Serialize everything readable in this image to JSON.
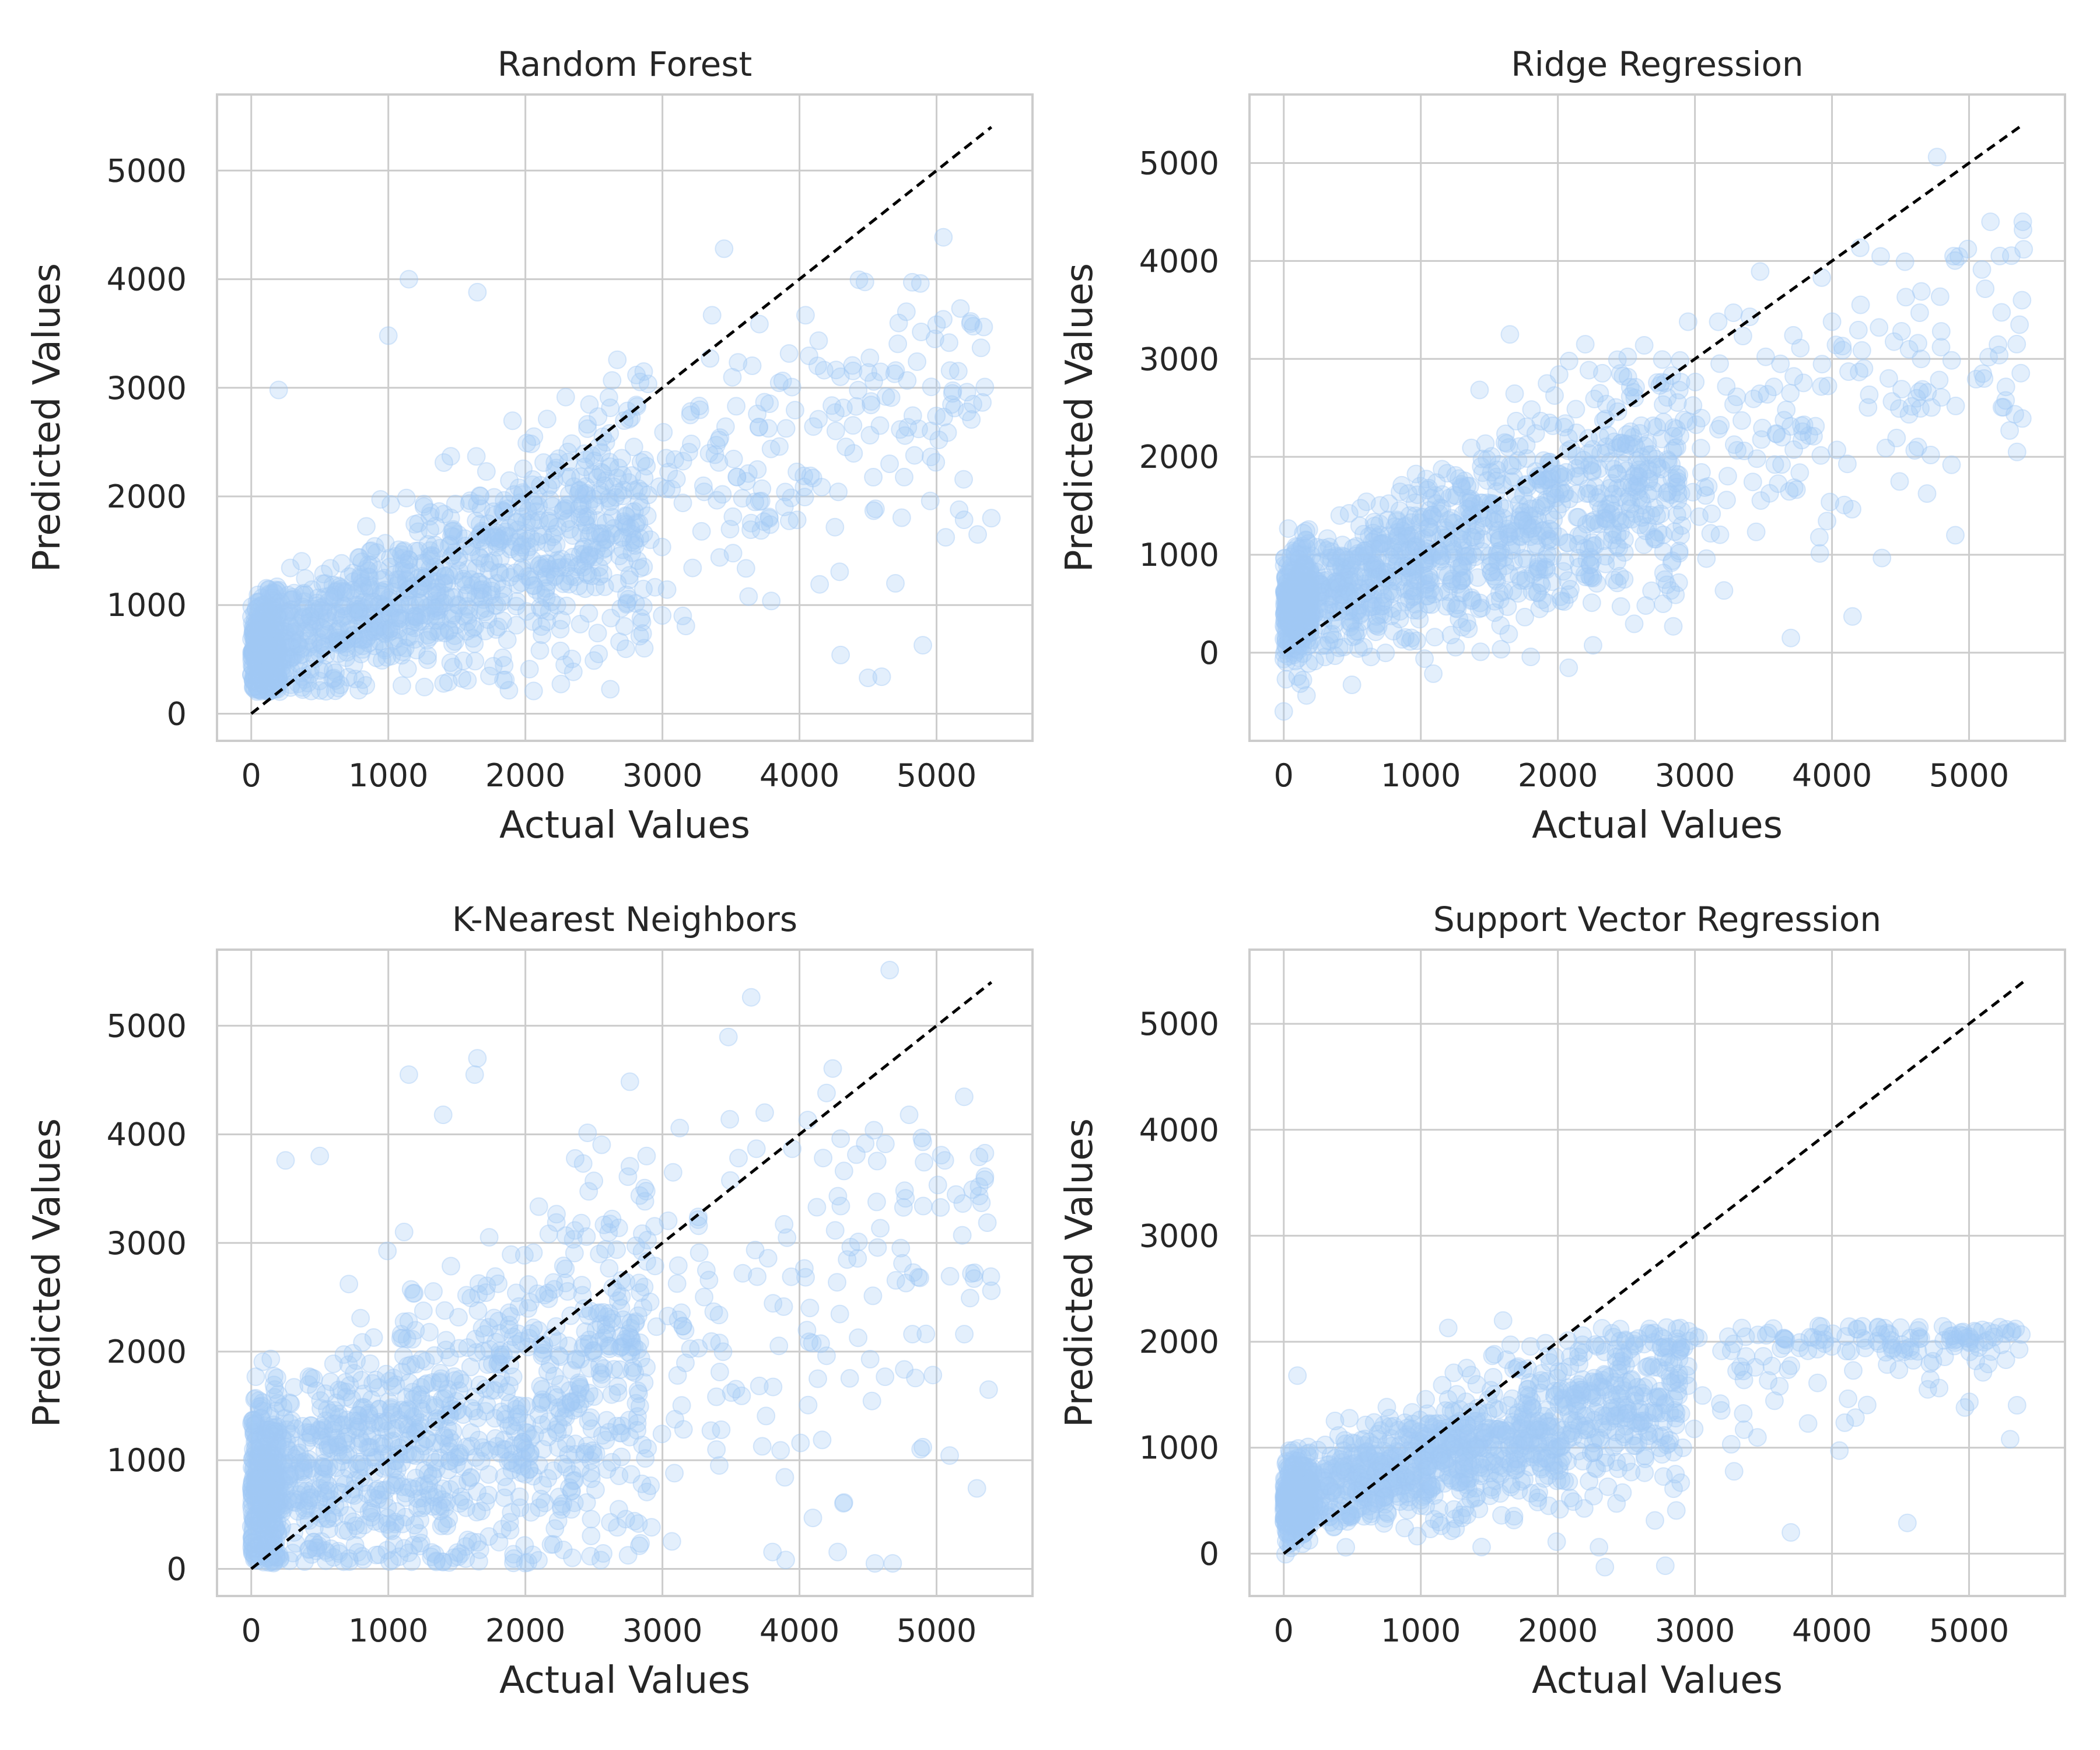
{
  "figure": {
    "point_color": "#a1c9f4",
    "point_alpha": 0.3,
    "reference_line_color": "#000000",
    "reference_line_style": "dashed"
  },
  "chart_data": [
    {
      "type": "scatter",
      "title": "Random Forest",
      "xlabel": "Actual Values",
      "ylabel": "Predicted Values",
      "xlim": [
        -250,
        5700
      ],
      "ylim": [
        -250,
        5700
      ],
      "xticks": [
        0,
        1000,
        2000,
        3000,
        4000,
        5000
      ],
      "yticks": [
        0,
        1000,
        2000,
        3000,
        4000,
        5000
      ],
      "grid": true,
      "reference_line": {
        "from": [
          0,
          0
        ],
        "to": [
          5400,
          5400
        ]
      },
      "model": {
        "intercept": 550,
        "slope": 0.48,
        "spread": 430,
        "clip_min": 200
      },
      "notable_points": [
        [
          3450,
          4280
        ],
        [
          1150,
          4000
        ],
        [
          1650,
          3880
        ],
        [
          4780,
          3700
        ],
        [
          5000,
          3580
        ],
        [
          4300,
          540
        ],
        [
          4500,
          330
        ],
        [
          4600,
          340
        ],
        [
          4900,
          630
        ],
        [
          5400,
          1800
        ],
        [
          5300,
          1650
        ],
        [
          4700,
          1200
        ],
        [
          200,
          2980
        ],
        [
          1000,
          3480
        ]
      ]
    },
    {
      "type": "scatter",
      "title": "Ridge Regression",
      "xlabel": "Actual Values",
      "ylabel": "Predicted Values",
      "xlim": [
        -250,
        5700
      ],
      "ylim": [
        -900,
        5700
      ],
      "xticks": [
        0,
        1000,
        2000,
        3000,
        4000,
        5000
      ],
      "yticks": [
        0,
        1000,
        2000,
        3000,
        4000,
        5000
      ],
      "grid": true,
      "reference_line": {
        "from": [
          0,
          0
        ],
        "to": [
          5400,
          5400
        ]
      },
      "model": {
        "intercept": 450,
        "slope": 0.5,
        "spread": 480,
        "clip_min": -600
      },
      "notable_points": [
        [
          2950,
          3380
        ],
        [
          4000,
          3380
        ],
        [
          1650,
          3250
        ],
        [
          3400,
          3430
        ],
        [
          5350,
          2050
        ],
        [
          4900,
          1200
        ],
        [
          3700,
          150
        ],
        [
          4150,
          370
        ],
        [
          0,
          -600
        ],
        [
          2200,
          3150
        ],
        [
          4650,
          3000
        ],
        [
          5100,
          2850
        ]
      ]
    },
    {
      "type": "scatter",
      "title": "K-Nearest Neighbors",
      "xlabel": "Actual Values",
      "ylabel": "Predicted Values",
      "xlim": [
        -250,
        5700
      ],
      "ylim": [
        -250,
        5700
      ],
      "xticks": [
        0,
        1000,
        2000,
        3000,
        4000,
        5000
      ],
      "yticks": [
        0,
        1000,
        2000,
        3000,
        4000,
        5000
      ],
      "grid": true,
      "reference_line": {
        "from": [
          0,
          0
        ],
        "to": [
          5400,
          5400
        ]
      },
      "model": {
        "intercept": 700,
        "slope": 0.42,
        "spread": 720,
        "clip_min": 50
      },
      "notable_points": [
        [
          1650,
          4700
        ],
        [
          1150,
          4550
        ],
        [
          1630,
          4550
        ],
        [
          1400,
          4180
        ],
        [
          4800,
          4180
        ],
        [
          4300,
          3960
        ],
        [
          250,
          3760
        ],
        [
          500,
          3800
        ],
        [
          4550,
          50
        ],
        [
          4680,
          50
        ],
        [
          2550,
          80
        ],
        [
          5400,
          2560
        ],
        [
          5380,
          1650
        ],
        [
          4900,
          1120
        ]
      ]
    },
    {
      "type": "scatter",
      "title": "Support Vector Regression",
      "xlabel": "Actual Values",
      "ylabel": "Predicted Values",
      "xlim": [
        -250,
        5700
      ],
      "ylim": [
        -400,
        5700
      ],
      "xticks": [
        0,
        1000,
        2000,
        3000,
        4000,
        5000
      ],
      "yticks": [
        0,
        1000,
        2000,
        3000,
        4000,
        5000
      ],
      "grid": true,
      "reference_line": {
        "from": [
          0,
          0
        ],
        "to": [
          5400,
          5400
        ]
      },
      "model": {
        "intercept": 480,
        "slope": 0.38,
        "spread": 330,
        "clip_min": -150,
        "clip_max": 2150
      },
      "notable_points": [
        [
          1600,
          2200
        ],
        [
          1200,
          2130
        ],
        [
          3000,
          2050
        ],
        [
          4100,
          2050
        ],
        [
          5000,
          2000
        ],
        [
          2300,
          60
        ],
        [
          3700,
          200
        ],
        [
          4550,
          290
        ],
        [
          5350,
          1400
        ],
        [
          5300,
          1080
        ],
        [
          100,
          1680
        ],
        [
          2900,
          1950
        ]
      ]
    }
  ]
}
